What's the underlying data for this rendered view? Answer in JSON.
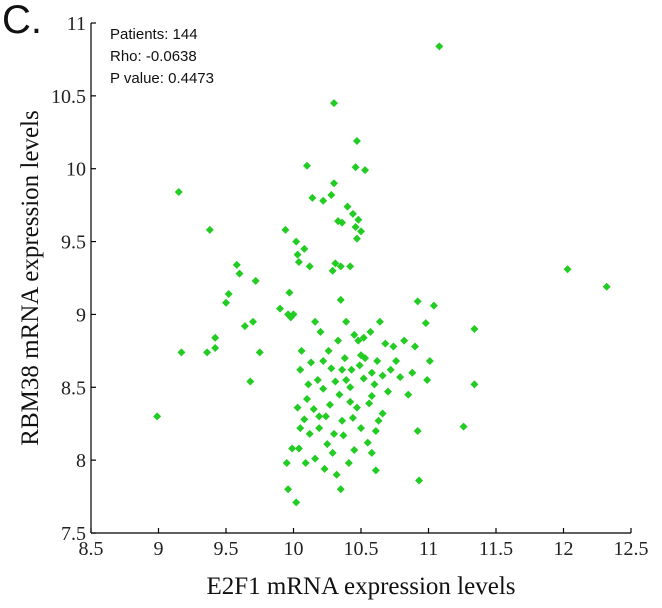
{
  "panel_label": "C.",
  "chart_data": {
    "type": "scatter",
    "xlabel": "E2F1 mRNA expression levels",
    "ylabel": "RBM38 mRNA expression levels",
    "xlim": [
      8.5,
      12.5
    ],
    "ylim": [
      7.5,
      11
    ],
    "x_ticks": [
      "8.5",
      "9",
      "9.5",
      "10",
      "10.5",
      "11",
      "11.5",
      "12",
      "12.5"
    ],
    "y_ticks": [
      "7.5",
      "8",
      "8.5",
      "9",
      "9.5",
      "10",
      "10.5",
      "11"
    ],
    "grid": false,
    "marker": "diamond",
    "color": "#22cc22",
    "annotations": [
      "Patients: 144",
      "Rho: -0.0638",
      "P value: 0.4473"
    ],
    "points": [
      [
        9.15,
        9.84
      ],
      [
        9.38,
        9.58
      ],
      [
        9.17,
        8.74
      ],
      [
        8.99,
        8.3
      ],
      [
        9.36,
        8.74
      ],
      [
        9.42,
        8.84
      ],
      [
        9.42,
        8.77
      ],
      [
        9.5,
        9.08
      ],
      [
        9.52,
        9.14
      ],
      [
        9.58,
        9.34
      ],
      [
        9.6,
        9.28
      ],
      [
        9.64,
        8.92
      ],
      [
        9.7,
        8.95
      ],
      [
        9.68,
        8.54
      ],
      [
        9.72,
        9.23
      ],
      [
        9.75,
        8.74
      ],
      [
        9.9,
        9.04
      ],
      [
        9.94,
        9.58
      ],
      [
        9.96,
        9.0
      ],
      [
        9.98,
        8.98
      ],
      [
        10.0,
        9.0
      ],
      [
        9.97,
        9.15
      ],
      [
        10.02,
        9.5
      ],
      [
        10.03,
        9.41
      ],
      [
        10.04,
        9.36
      ],
      [
        10.08,
        9.45
      ],
      [
        10.1,
        10.02
      ],
      [
        10.14,
        9.8
      ],
      [
        10.12,
        9.33
      ],
      [
        10.22,
        9.78
      ],
      [
        10.28,
        9.82
      ],
      [
        10.3,
        9.9
      ],
      [
        10.31,
        9.35
      ],
      [
        10.29,
        9.3
      ],
      [
        10.35,
        9.33
      ],
      [
        10.33,
        9.64
      ],
      [
        10.36,
        9.63
      ],
      [
        10.3,
        10.45
      ],
      [
        10.4,
        9.74
      ],
      [
        10.44,
        9.69
      ],
      [
        10.46,
        9.6
      ],
      [
        10.5,
        9.57
      ],
      [
        10.48,
        9.65
      ],
      [
        10.46,
        10.01
      ],
      [
        10.47,
        10.19
      ],
      [
        10.53,
        9.99
      ],
      [
        10.42,
        9.33
      ],
      [
        10.35,
        9.1
      ],
      [
        11.08,
        10.84
      ],
      [
        12.03,
        9.31
      ],
      [
        12.32,
        9.19
      ],
      [
        11.34,
        8.9
      ],
      [
        11.34,
        8.52
      ],
      [
        11.26,
        8.23
      ],
      [
        11.04,
        9.06
      ],
      [
        10.98,
        8.94
      ],
      [
        10.92,
        9.09
      ],
      [
        10.9,
        8.78
      ],
      [
        11.01,
        8.68
      ],
      [
        10.99,
        8.55
      ],
      [
        10.92,
        8.2
      ],
      [
        10.93,
        7.86
      ],
      [
        10.85,
        8.45
      ],
      [
        10.79,
        8.57
      ],
      [
        10.74,
        8.78
      ],
      [
        10.72,
        8.62
      ],
      [
        10.7,
        8.47
      ],
      [
        10.66,
        8.32
      ],
      [
        10.63,
        8.27
      ],
      [
        10.61,
        8.2
      ],
      [
        10.61,
        7.93
      ],
      [
        10.6,
        8.52
      ],
      [
        10.58,
        8.6
      ],
      [
        10.56,
        8.39
      ],
      [
        10.55,
        8.12
      ],
      [
        10.53,
        8.7
      ],
      [
        10.52,
        8.56
      ],
      [
        10.5,
        8.22
      ],
      [
        10.49,
        8.65
      ],
      [
        10.48,
        8.82
      ],
      [
        10.47,
        8.36
      ],
      [
        10.45,
        8.07
      ],
      [
        10.44,
        8.29
      ],
      [
        10.43,
        8.62
      ],
      [
        10.42,
        8.4
      ],
      [
        10.41,
        7.98
      ],
      [
        10.39,
        8.55
      ],
      [
        10.38,
        8.7
      ],
      [
        10.37,
        8.17
      ],
      [
        10.36,
        8.27
      ],
      [
        10.35,
        7.8
      ],
      [
        10.34,
        8.45
      ],
      [
        10.33,
        8.82
      ],
      [
        10.32,
        7.9
      ],
      [
        10.31,
        8.54
      ],
      [
        10.3,
        8.18
      ],
      [
        10.29,
        8.05
      ],
      [
        10.28,
        8.63
      ],
      [
        10.27,
        8.38
      ],
      [
        10.26,
        8.75
      ],
      [
        10.25,
        8.11
      ],
      [
        10.24,
        8.3
      ],
      [
        10.23,
        7.94
      ],
      [
        10.22,
        8.49
      ],
      [
        10.2,
        8.88
      ],
      [
        10.19,
        8.22
      ],
      [
        10.18,
        8.55
      ],
      [
        10.16,
        8.01
      ],
      [
        10.15,
        8.35
      ],
      [
        10.13,
        8.67
      ],
      [
        10.12,
        8.18
      ],
      [
        10.1,
        8.42
      ],
      [
        10.09,
        7.98
      ],
      [
        10.08,
        8.28
      ],
      [
        10.06,
        8.75
      ],
      [
        10.05,
        8.62
      ],
      [
        10.04,
        8.08
      ],
      [
        10.03,
        8.36
      ],
      [
        10.02,
        7.71
      ],
      [
        9.99,
        8.08
      ],
      [
        9.96,
        7.8
      ],
      [
        9.95,
        7.98
      ],
      [
        10.05,
        8.22
      ],
      [
        10.11,
        8.52
      ],
      [
        10.16,
        8.95
      ],
      [
        10.39,
        8.95
      ],
      [
        10.45,
        8.86
      ],
      [
        10.5,
        8.72
      ],
      [
        10.52,
        8.84
      ],
      [
        10.57,
        8.88
      ],
      [
        10.62,
        8.68
      ],
      [
        10.68,
        8.8
      ],
      [
        10.58,
        8.44
      ],
      [
        10.66,
        8.58
      ],
      [
        10.76,
        8.68
      ],
      [
        10.82,
        8.82
      ],
      [
        10.88,
        8.6
      ],
      [
        10.64,
        8.95
      ],
      [
        10.58,
        8.05
      ],
      [
        10.36,
        8.62
      ],
      [
        10.42,
        8.5
      ],
      [
        10.22,
        8.68
      ],
      [
        10.19,
        8.3
      ],
      [
        10.47,
        9.52
      ]
    ]
  }
}
